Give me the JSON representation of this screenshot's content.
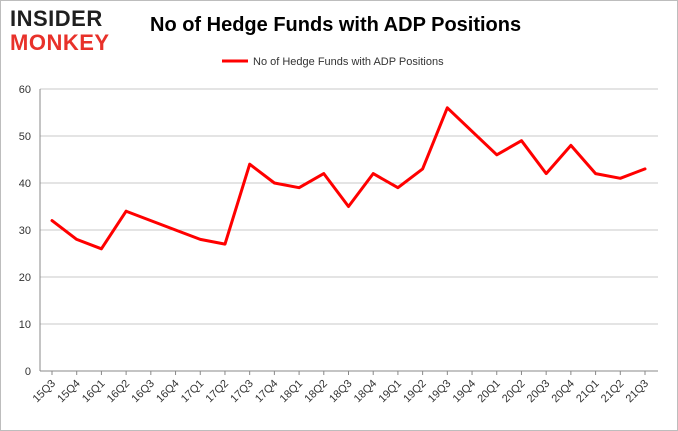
{
  "brand": {
    "line1": "INSIDER",
    "line2": "MONKEY"
  },
  "chart_data": {
    "type": "line",
    "title": "No of Hedge Funds with ADP Positions",
    "xlabel": "",
    "ylabel": "",
    "categories": [
      "15Q3",
      "15Q4",
      "16Q1",
      "16Q2",
      "16Q3",
      "16Q4",
      "17Q1",
      "17Q2",
      "17Q3",
      "17Q4",
      "18Q1",
      "18Q2",
      "18Q3",
      "18Q4",
      "19Q1",
      "19Q2",
      "19Q3",
      "19Q4",
      "20Q1",
      "20Q2",
      "20Q3",
      "20Q4",
      "21Q1",
      "21Q2",
      "21Q3"
    ],
    "series": [
      {
        "name": "No of Hedge Funds with ADP Positions",
        "values": [
          32,
          28,
          26,
          34,
          32,
          30,
          28,
          27,
          44,
          40,
          39,
          42,
          35,
          42,
          39,
          43,
          56,
          51,
          46,
          49,
          42,
          48,
          42,
          41,
          43
        ],
        "color": "#ff0000"
      }
    ],
    "ylim": [
      0,
      60
    ],
    "yticks": [
      0,
      10,
      20,
      30,
      40,
      50,
      60
    ],
    "grid": true,
    "legend": "top-center"
  }
}
